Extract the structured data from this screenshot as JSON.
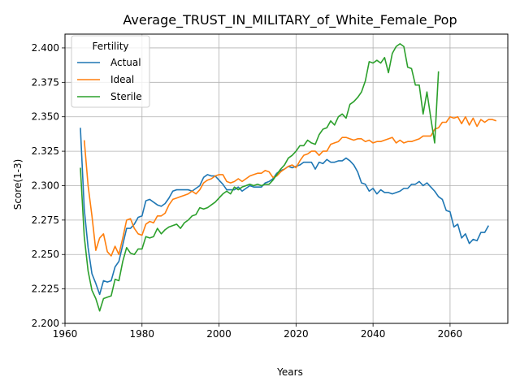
{
  "chart_data": {
    "type": "line",
    "title": "Average_TRUST_IN_MILITARY_of_White_Female_Pop",
    "xlabel": "Years",
    "ylabel": "Score(1-3)",
    "xlim": [
      1960,
      2075
    ],
    "ylim": [
      2.2,
      2.41
    ],
    "x_ticks": [
      1960,
      1980,
      2000,
      2020,
      2040,
      2060
    ],
    "y_ticks": [
      2.2,
      2.225,
      2.25,
      2.275,
      2.3,
      2.325,
      2.35,
      2.375,
      2.4
    ],
    "grid": true,
    "legend": {
      "title": "Fertility",
      "placement": "top-left"
    },
    "series": [
      {
        "name": "Actual",
        "color": "#1f77b4",
        "points": [
          [
            1964,
            2.342
          ],
          [
            1965,
            2.283
          ],
          [
            1966,
            2.255
          ],
          [
            1967,
            2.236
          ],
          [
            1968,
            2.229
          ],
          [
            1969,
            2.221
          ],
          [
            1970,
            2.231
          ],
          [
            1971,
            2.23
          ],
          [
            1972,
            2.231
          ],
          [
            1973,
            2.241
          ],
          [
            1974,
            2.245
          ],
          [
            1975,
            2.257
          ],
          [
            1976,
            2.269
          ],
          [
            1977,
            2.269
          ],
          [
            1978,
            2.272
          ],
          [
            1979,
            2.277
          ],
          [
            1980,
            2.278
          ],
          [
            1981,
            2.289
          ],
          [
            1982,
            2.29
          ],
          [
            1983,
            2.288
          ],
          [
            1984,
            2.286
          ],
          [
            1985,
            2.285
          ],
          [
            1986,
            2.287
          ],
          [
            1987,
            2.291
          ],
          [
            1988,
            2.296
          ],
          [
            1989,
            2.297
          ],
          [
            1990,
            2.297
          ],
          [
            1991,
            2.297
          ],
          [
            1992,
            2.297
          ],
          [
            1993,
            2.296
          ],
          [
            1994,
            2.298
          ],
          [
            1995,
            2.3
          ],
          [
            1996,
            2.306
          ],
          [
            1997,
            2.308
          ],
          [
            1998,
            2.307
          ],
          [
            1999,
            2.307
          ],
          [
            2000,
            2.304
          ],
          [
            2001,
            2.301
          ],
          [
            2002,
            2.297
          ],
          [
            2003,
            2.297
          ],
          [
            2004,
            2.297
          ],
          [
            2005,
            2.299
          ],
          [
            2006,
            2.296
          ],
          [
            2007,
            2.298
          ],
          [
            2008,
            2.3
          ],
          [
            2009,
            2.299
          ],
          [
            2010,
            2.299
          ],
          [
            2011,
            2.299
          ],
          [
            2012,
            2.302
          ],
          [
            2013,
            2.303
          ],
          [
            2014,
            2.305
          ],
          [
            2015,
            2.309
          ],
          [
            2016,
            2.311
          ],
          [
            2017,
            2.312
          ],
          [
            2018,
            2.314
          ],
          [
            2019,
            2.313
          ],
          [
            2020,
            2.314
          ],
          [
            2021,
            2.315
          ],
          [
            2022,
            2.317
          ],
          [
            2023,
            2.317
          ],
          [
            2024,
            2.317
          ],
          [
            2025,
            2.312
          ],
          [
            2026,
            2.317
          ],
          [
            2027,
            2.316
          ],
          [
            2028,
            2.319
          ],
          [
            2029,
            2.317
          ],
          [
            2030,
            2.317
          ],
          [
            2031,
            2.318
          ],
          [
            2032,
            2.318
          ],
          [
            2033,
            2.32
          ],
          [
            2034,
            2.318
          ],
          [
            2035,
            2.315
          ],
          [
            2036,
            2.31
          ],
          [
            2037,
            2.302
          ],
          [
            2038,
            2.301
          ],
          [
            2039,
            2.296
          ],
          [
            2040,
            2.298
          ],
          [
            2041,
            2.294
          ],
          [
            2042,
            2.297
          ],
          [
            2043,
            2.295
          ],
          [
            2044,
            2.295
          ],
          [
            2045,
            2.294
          ],
          [
            2046,
            2.295
          ],
          [
            2047,
            2.296
          ],
          [
            2048,
            2.298
          ],
          [
            2049,
            2.298
          ],
          [
            2050,
            2.301
          ],
          [
            2051,
            2.301
          ],
          [
            2052,
            2.303
          ],
          [
            2053,
            2.3
          ],
          [
            2054,
            2.302
          ],
          [
            2055,
            2.299
          ],
          [
            2056,
            2.296
          ],
          [
            2057,
            2.292
          ],
          [
            2058,
            2.29
          ],
          [
            2059,
            2.282
          ],
          [
            2060,
            2.281
          ],
          [
            2061,
            2.27
          ],
          [
            2062,
            2.272
          ],
          [
            2063,
            2.262
          ],
          [
            2064,
            2.265
          ],
          [
            2065,
            2.258
          ],
          [
            2066,
            2.261
          ],
          [
            2067,
            2.26
          ],
          [
            2068,
            2.266
          ],
          [
            2069,
            2.266
          ],
          [
            2070,
            2.271
          ]
        ]
      },
      {
        "name": "Ideal",
        "color": "#ff7f0e",
        "points": [
          [
            1965,
            2.333
          ],
          [
            1966,
            2.3
          ],
          [
            1967,
            2.278
          ],
          [
            1968,
            2.253
          ],
          [
            1969,
            2.262
          ],
          [
            1970,
            2.265
          ],
          [
            1971,
            2.252
          ],
          [
            1972,
            2.249
          ],
          [
            1973,
            2.256
          ],
          [
            1974,
            2.25
          ],
          [
            1975,
            2.262
          ],
          [
            1976,
            2.275
          ],
          [
            1977,
            2.276
          ],
          [
            1978,
            2.269
          ],
          [
            1979,
            2.265
          ],
          [
            1980,
            2.264
          ],
          [
            1981,
            2.272
          ],
          [
            1982,
            2.274
          ],
          [
            1983,
            2.273
          ],
          [
            1984,
            2.278
          ],
          [
            1985,
            2.278
          ],
          [
            1986,
            2.28
          ],
          [
            1987,
            2.286
          ],
          [
            1988,
            2.29
          ],
          [
            1989,
            2.291
          ],
          [
            1990,
            2.292
          ],
          [
            1991,
            2.293
          ],
          [
            1992,
            2.294
          ],
          [
            1993,
            2.296
          ],
          [
            1994,
            2.294
          ],
          [
            1995,
            2.297
          ],
          [
            1996,
            2.302
          ],
          [
            1997,
            2.304
          ],
          [
            1998,
            2.305
          ],
          [
            1999,
            2.307
          ],
          [
            2000,
            2.308
          ],
          [
            2001,
            2.308
          ],
          [
            2002,
            2.303
          ],
          [
            2003,
            2.302
          ],
          [
            2004,
            2.303
          ],
          [
            2005,
            2.305
          ],
          [
            2006,
            2.303
          ],
          [
            2007,
            2.305
          ],
          [
            2008,
            2.307
          ],
          [
            2009,
            2.308
          ],
          [
            2010,
            2.309
          ],
          [
            2011,
            2.309
          ],
          [
            2012,
            2.311
          ],
          [
            2013,
            2.31
          ],
          [
            2014,
            2.306
          ],
          [
            2015,
            2.307
          ],
          [
            2016,
            2.31
          ],
          [
            2017,
            2.312
          ],
          [
            2018,
            2.314
          ],
          [
            2019,
            2.315
          ],
          [
            2020,
            2.313
          ],
          [
            2021,
            2.318
          ],
          [
            2022,
            2.322
          ],
          [
            2023,
            2.323
          ],
          [
            2024,
            2.325
          ],
          [
            2025,
            2.325
          ],
          [
            2026,
            2.322
          ],
          [
            2027,
            2.325
          ],
          [
            2028,
            2.325
          ],
          [
            2029,
            2.33
          ],
          [
            2030,
            2.331
          ],
          [
            2031,
            2.332
          ],
          [
            2032,
            2.335
          ],
          [
            2033,
            2.335
          ],
          [
            2034,
            2.334
          ],
          [
            2035,
            2.333
          ],
          [
            2036,
            2.334
          ],
          [
            2037,
            2.334
          ],
          [
            2038,
            2.332
          ],
          [
            2039,
            2.333
          ],
          [
            2040,
            2.331
          ],
          [
            2041,
            2.332
          ],
          [
            2042,
            2.332
          ],
          [
            2043,
            2.333
          ],
          [
            2044,
            2.334
          ],
          [
            2045,
            2.335
          ],
          [
            2046,
            2.331
          ],
          [
            2047,
            2.333
          ],
          [
            2048,
            2.331
          ],
          [
            2049,
            2.332
          ],
          [
            2050,
            2.332
          ],
          [
            2051,
            2.333
          ],
          [
            2052,
            2.334
          ],
          [
            2053,
            2.336
          ],
          [
            2054,
            2.336
          ],
          [
            2055,
            2.336
          ],
          [
            2056,
            2.341
          ],
          [
            2057,
            2.342
          ],
          [
            2058,
            2.346
          ],
          [
            2059,
            2.346
          ],
          [
            2060,
            2.35
          ],
          [
            2061,
            2.349
          ],
          [
            2062,
            2.35
          ],
          [
            2063,
            2.345
          ],
          [
            2064,
            2.35
          ],
          [
            2065,
            2.344
          ],
          [
            2066,
            2.349
          ],
          [
            2067,
            2.343
          ],
          [
            2068,
            2.348
          ],
          [
            2069,
            2.346
          ],
          [
            2070,
            2.348
          ],
          [
            2071,
            2.348
          ],
          [
            2072,
            2.347
          ]
        ]
      },
      {
        "name": "Sterile",
        "color": "#2ca02c",
        "points": [
          [
            1964,
            2.313
          ],
          [
            1965,
            2.263
          ],
          [
            1966,
            2.238
          ],
          [
            1967,
            2.224
          ],
          [
            1968,
            2.218
          ],
          [
            1969,
            2.209
          ],
          [
            1970,
            2.218
          ],
          [
            1971,
            2.219
          ],
          [
            1972,
            2.22
          ],
          [
            1973,
            2.232
          ],
          [
            1974,
            2.231
          ],
          [
            1975,
            2.245
          ],
          [
            1976,
            2.255
          ],
          [
            1977,
            2.251
          ],
          [
            1978,
            2.25
          ],
          [
            1979,
            2.254
          ],
          [
            1980,
            2.254
          ],
          [
            1981,
            2.263
          ],
          [
            1982,
            2.262
          ],
          [
            1983,
            2.263
          ],
          [
            1984,
            2.269
          ],
          [
            1985,
            2.265
          ],
          [
            1986,
            2.268
          ],
          [
            1987,
            2.27
          ],
          [
            1988,
            2.271
          ],
          [
            1989,
            2.272
          ],
          [
            1990,
            2.269
          ],
          [
            1991,
            2.273
          ],
          [
            1992,
            2.275
          ],
          [
            1993,
            2.278
          ],
          [
            1994,
            2.279
          ],
          [
            1995,
            2.284
          ],
          [
            1996,
            2.283
          ],
          [
            1997,
            2.284
          ],
          [
            1998,
            2.286
          ],
          [
            1999,
            2.288
          ],
          [
            2000,
            2.291
          ],
          [
            2001,
            2.294
          ],
          [
            2002,
            2.296
          ],
          [
            2003,
            2.294
          ],
          [
            2004,
            2.299
          ],
          [
            2005,
            2.297
          ],
          [
            2006,
            2.299
          ],
          [
            2007,
            2.3
          ],
          [
            2008,
            2.301
          ],
          [
            2009,
            2.3
          ],
          [
            2010,
            2.301
          ],
          [
            2011,
            2.3
          ],
          [
            2012,
            2.301
          ],
          [
            2013,
            2.301
          ],
          [
            2014,
            2.304
          ],
          [
            2015,
            2.308
          ],
          [
            2016,
            2.312
          ],
          [
            2017,
            2.315
          ],
          [
            2018,
            2.32
          ],
          [
            2019,
            2.322
          ],
          [
            2020,
            2.325
          ],
          [
            2021,
            2.329
          ],
          [
            2022,
            2.329
          ],
          [
            2023,
            2.333
          ],
          [
            2024,
            2.331
          ],
          [
            2025,
            2.33
          ],
          [
            2026,
            2.337
          ],
          [
            2027,
            2.341
          ],
          [
            2028,
            2.342
          ],
          [
            2029,
            2.347
          ],
          [
            2030,
            2.344
          ],
          [
            2031,
            2.35
          ],
          [
            2032,
            2.352
          ],
          [
            2033,
            2.349
          ],
          [
            2034,
            2.359
          ],
          [
            2035,
            2.361
          ],
          [
            2036,
            2.364
          ],
          [
            2037,
            2.368
          ],
          [
            2038,
            2.376
          ],
          [
            2039,
            2.39
          ],
          [
            2040,
            2.389
          ],
          [
            2041,
            2.391
          ],
          [
            2042,
            2.389
          ],
          [
            2043,
            2.393
          ],
          [
            2044,
            2.382
          ],
          [
            2045,
            2.396
          ],
          [
            2046,
            2.401
          ],
          [
            2047,
            2.403
          ],
          [
            2048,
            2.401
          ],
          [
            2049,
            2.386
          ],
          [
            2050,
            2.385
          ],
          [
            2051,
            2.373
          ],
          [
            2052,
            2.373
          ],
          [
            2053,
            2.352
          ],
          [
            2054,
            2.368
          ],
          [
            2055,
            2.349
          ],
          [
            2056,
            2.331
          ],
          [
            2057,
            2.383
          ]
        ]
      }
    ]
  }
}
